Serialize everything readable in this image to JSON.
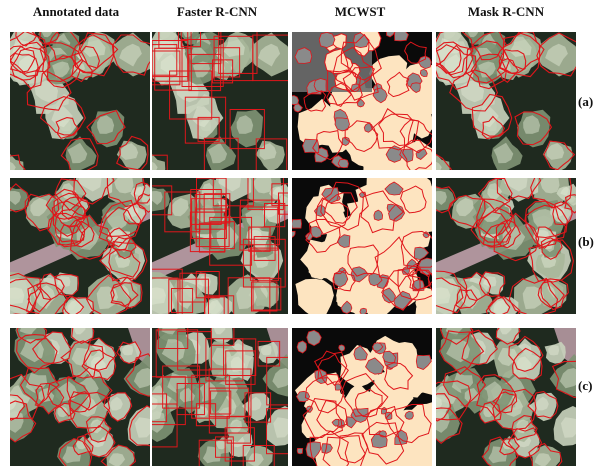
{
  "columns": [
    "Annotated data",
    "Faster R-CNN",
    "MCWST",
    "Mask R-CNN"
  ],
  "rows": [
    "(a)",
    "(b)",
    "(c)"
  ],
  "colors": {
    "outline": "#e0161b",
    "tree_light": "#c9d3bc",
    "tree_mid": "#7f9474",
    "forest_dark": "#1f2a1f",
    "road": "#c9a7b3",
    "segment_fill": "#fde4c0",
    "segment_gray": "#8a8a8a",
    "background_black": "#0a0a0a"
  }
}
